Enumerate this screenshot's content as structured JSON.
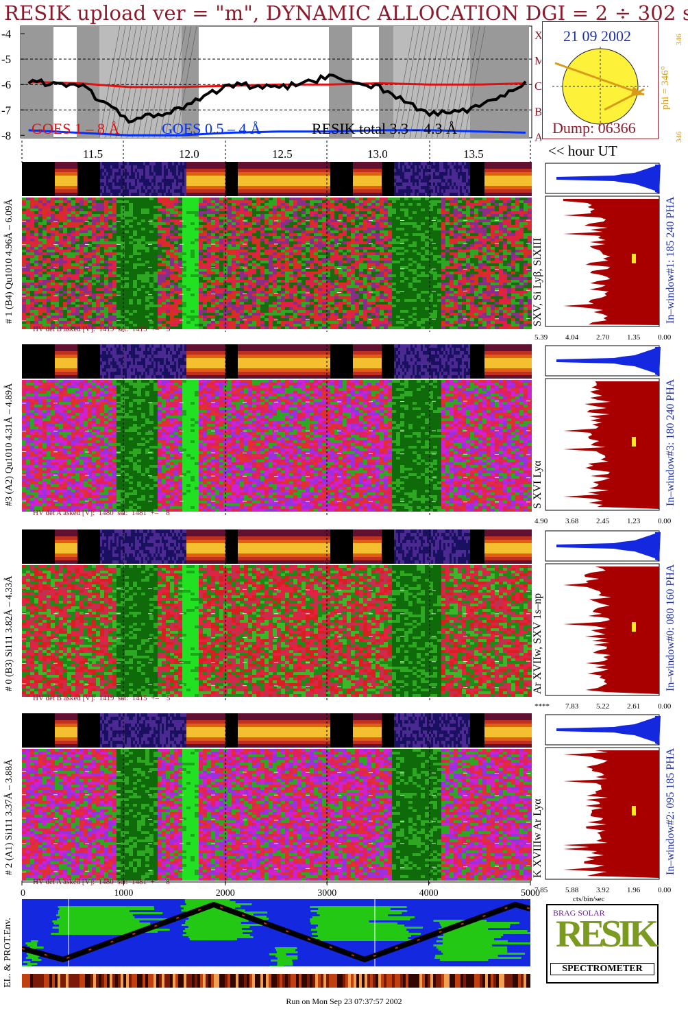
{
  "title": "RESIK upload ver = \"m\", DYNAMIC ALLOCATION  DGI =   2 ÷ 302 s",
  "footer": "Run on Mon Sep 23 07:37:57 2002",
  "date_box": {
    "date": "21 09 2002",
    "dump": "Dump: 06366",
    "phi": "phi = 346°",
    "phi_small_top": "346",
    "phi_small_bottom": "346"
  },
  "goes": {
    "legend_goes18": "GOES 1 – 8 Å",
    "legend_goes054": "GOES 0.5 – 4 Å",
    "legend_resik": "RESIK total 3.3 – 4.3 Å",
    "class_labels": [
      "X",
      "M",
      "C",
      "B",
      "A"
    ],
    "ytick_labels": [
      "-4",
      "-5",
      "-6",
      "-7",
      "-8"
    ]
  },
  "time_axis": {
    "ticks": [
      "11.5",
      "12.0",
      "12.5",
      "13.0",
      "13.5"
    ],
    "unit_label": "<< hour UT"
  },
  "channels": [
    {
      "left_label": "# 1  (B4) Qu1010 4.96Å – 6.09Å",
      "line_label": "SXV, Si Lyβ, SiXIII",
      "hv": "HV det B asked [V]:  1419  set:  1415  +–    5",
      "window": "In–window#1:  185 240 PHA",
      "hist_ticks": [
        "5.39",
        "4.04",
        "2.70",
        "1.35",
        "0.00"
      ],
      "spec_color": "mixed"
    },
    {
      "left_label": "#3  (A2) Qu1010  4.31Å – 4.89Å",
      "line_label": "S XVI Lyα",
      "hv": "HV det A asked [V]:  1480  set:  1481  +–    8",
      "window": "In–window#3:  180 240 PHA",
      "hist_ticks": [
        "4.90",
        "3.68",
        "2.45",
        "1.23",
        "0.00"
      ],
      "spec_color": "magenta"
    },
    {
      "left_label": "# 0  (B3) Si111  3.82Å – 4.33Å",
      "line_label": "Ar XVIIw,  SXV 1s–np",
      "hv": "HV det B asked [V]:  1419  set:  1415  +–    5",
      "window": "In–window#0:  080 160 PHA",
      "hist_ticks": [
        "****",
        "7.83",
        "5.22",
        "2.61",
        "0.00"
      ],
      "spec_color": "red"
    },
    {
      "left_label": "# 2  (A1) Si111  3.37Å – 3.88Å",
      "line_label": "K XVIIIw  Ar Lyα",
      "hv": "HV det A asked [V]:  1480  set:  1481  +–    8",
      "window": "In–window#2:  095 185 PHA",
      "hist_ticks": [
        "7.85",
        "5.88",
        "3.92",
        "1.96",
        "0.00"
      ],
      "spec_color": "magenta"
    }
  ],
  "seconds_axis": {
    "ticks": [
      "0",
      "1000",
      "2000",
      "3000",
      "4000",
      "5000"
    ]
  },
  "hist_xlabel": "cts/bin/sec",
  "env_label": "EL. & PROT.Env.",
  "logo": {
    "letters": "RESIK",
    "small": "BRAG SOLAR",
    "caption": "SPECTROMETER"
  },
  "colors": {
    "title": "#8b1a2b",
    "goes18": "#e01010",
    "goes054": "#0030ff",
    "hist": "#a80000",
    "window_label": "#1c2fb0",
    "map_ocean": "#1428e0",
    "map_land": "#22c814"
  },
  "chart_data": [
    {
      "type": "line",
      "title": "",
      "xlabel": "",
      "ylabel": "",
      "ylim": [
        -8.1,
        -3.7
      ],
      "x": [
        11.25,
        11.5,
        11.75,
        12.0,
        12.25,
        12.5,
        12.75,
        13.0,
        13.25,
        13.5,
        13.75
      ],
      "series": [
        {
          "name": "GOES 1 – 8 Å",
          "values": [
            -5.9,
            -5.95,
            -6.1,
            -6.1,
            -6.05,
            -6.0,
            -6.0,
            -5.95,
            -6.0,
            -6.0,
            -5.95
          ]
        },
        {
          "name": "GOES 0.5 – 4 Å",
          "values": [
            -7.8,
            -7.9,
            -8.0,
            -8.0,
            -7.9,
            -7.85,
            -7.85,
            -7.8,
            -7.8,
            -7.85,
            -7.9
          ]
        },
        {
          "name": "RESIK total 3.3 – 4.3 Å",
          "values": [
            -5.9,
            -6.0,
            -7.4,
            -7.0,
            -6.0,
            -6.15,
            -5.7,
            -6.1,
            -7.2,
            -6.9,
            -5.9
          ]
        }
      ]
    }
  ]
}
